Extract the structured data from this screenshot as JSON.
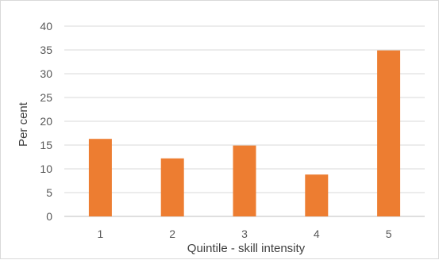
{
  "chart_data": {
    "type": "bar",
    "title": "",
    "xlabel": "Quintile - skill intensity",
    "ylabel": "Per cent",
    "categories": [
      "1",
      "2",
      "3",
      "4",
      "5"
    ],
    "values": [
      16.3,
      12.2,
      14.9,
      8.8,
      34.9
    ],
    "ylim": [
      0,
      40
    ],
    "yticks": [
      "0",
      "5",
      "10",
      "15",
      "20",
      "25",
      "30",
      "35",
      "40"
    ],
    "grid": true,
    "legend": "none",
    "bar_color": "#ED7D31",
    "grid_color": "#D9D9D9",
    "axis_color": "#BFBFBF"
  }
}
